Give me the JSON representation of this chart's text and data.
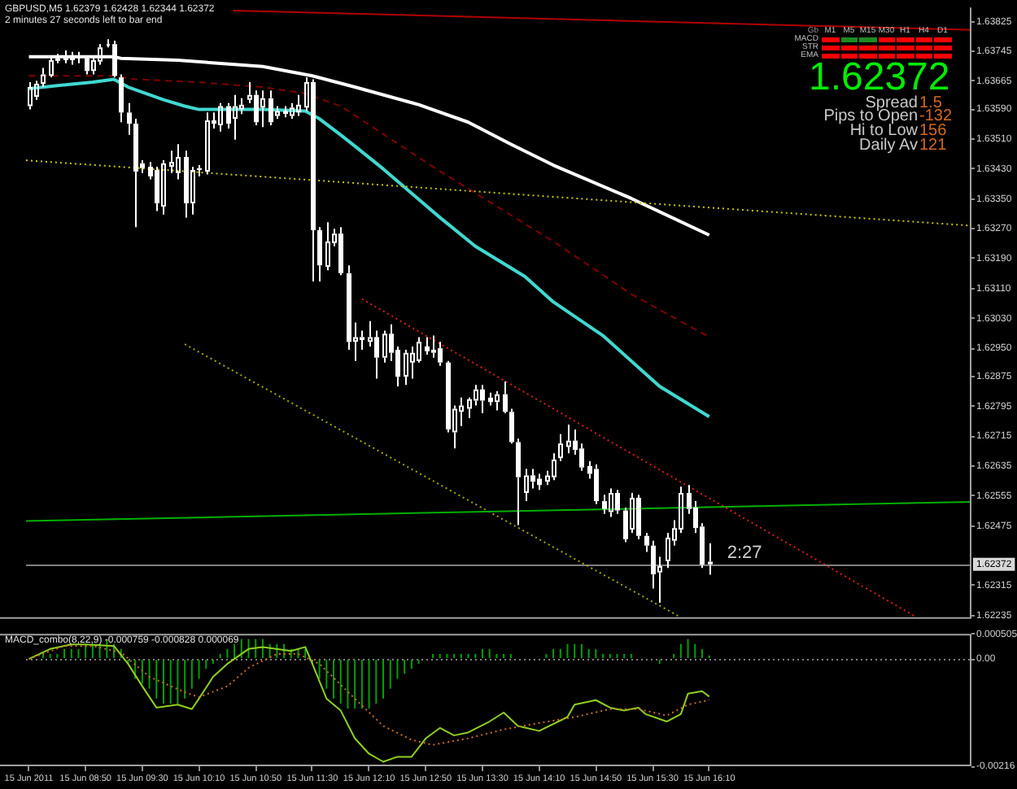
{
  "chart_data": [
    {
      "type": "candlestick",
      "title": "GBPUSD,M5 1.62379 1.62428 1.62344 1.62372",
      "subtitle": "2 minutes 27 seconds left to bar end",
      "x": [
        "2011-06-15T08:10",
        "2011-06-15T08:15",
        "2011-06-15T08:20",
        "2011-06-15T08:25",
        "2011-06-15T08:30",
        "2011-06-15T08:35",
        "2011-06-15T08:40",
        "2011-06-15T08:45",
        "2011-06-15T08:50",
        "2011-06-15T08:55",
        "2011-06-15T09:00",
        "2011-06-15T09:05",
        "2011-06-15T09:10",
        "2011-06-15T09:15",
        "2011-06-15T09:20",
        "2011-06-15T09:25",
        "2011-06-15T09:30",
        "2011-06-15T09:35",
        "2011-06-15T09:40",
        "2011-06-15T09:45",
        "2011-06-15T09:50",
        "2011-06-15T09:55",
        "2011-06-15T10:00",
        "2011-06-15T10:05",
        "2011-06-15T10:10",
        "2011-06-15T10:15",
        "2011-06-15T10:20",
        "2011-06-15T10:25",
        "2011-06-15T10:30",
        "2011-06-15T10:35",
        "2011-06-15T10:40",
        "2011-06-15T10:45",
        "2011-06-15T10:50",
        "2011-06-15T10:55",
        "2011-06-15T11:00",
        "2011-06-15T11:05",
        "2011-06-15T11:10",
        "2011-06-15T11:15",
        "2011-06-15T11:20",
        "2011-06-15T11:25",
        "2011-06-15T11:30",
        "2011-06-15T11:35",
        "2011-06-15T11:40",
        "2011-06-15T11:45",
        "2011-06-15T11:50",
        "2011-06-15T11:55",
        "2011-06-15T12:00",
        "2011-06-15T12:05",
        "2011-06-15T12:10",
        "2011-06-15T12:15",
        "2011-06-15T12:20",
        "2011-06-15T12:25",
        "2011-06-15T12:30",
        "2011-06-15T12:35",
        "2011-06-15T12:40",
        "2011-06-15T12:45",
        "2011-06-15T12:50",
        "2011-06-15T12:55",
        "2011-06-15T13:00",
        "2011-06-15T13:05",
        "2011-06-15T13:10",
        "2011-06-15T13:15",
        "2011-06-15T13:20",
        "2011-06-15T13:25",
        "2011-06-15T13:30",
        "2011-06-15T13:35",
        "2011-06-15T13:40",
        "2011-06-15T13:45",
        "2011-06-15T13:50",
        "2011-06-15T13:55",
        "2011-06-15T14:00",
        "2011-06-15T14:05",
        "2011-06-15T14:10",
        "2011-06-15T14:15",
        "2011-06-15T14:20",
        "2011-06-15T14:25",
        "2011-06-15T14:30",
        "2011-06-15T14:35",
        "2011-06-15T14:40",
        "2011-06-15T14:45",
        "2011-06-15T14:50",
        "2011-06-15T14:55",
        "2011-06-15T15:00",
        "2011-06-15T15:05",
        "2011-06-15T15:10",
        "2011-06-15T15:15",
        "2011-06-15T15:20",
        "2011-06-15T15:25",
        "2011-06-15T15:30",
        "2011-06-15T15:35",
        "2011-06-15T15:40",
        "2011-06-15T15:45",
        "2011-06-15T15:50",
        "2011-06-15T15:55",
        "2011-06-15T16:00",
        "2011-06-15T16:05",
        "2011-06-15T16:10"
      ],
      "ohlc": [
        [
          1.63598,
          1.63662,
          1.63589,
          1.63649
        ],
        [
          1.63623,
          1.63666,
          1.63615,
          1.63658
        ],
        [
          1.63658,
          1.637,
          1.63649,
          1.63683
        ],
        [
          1.63679,
          1.6373,
          1.63675,
          1.63721
        ],
        [
          1.63726,
          1.63738,
          1.63713,
          1.63719
        ],
        [
          1.63734,
          1.63747,
          1.63713,
          1.63721
        ],
        [
          1.63721,
          1.63743,
          1.63709,
          1.6373
        ],
        [
          1.63726,
          1.63743,
          1.63713,
          1.6373
        ],
        [
          1.63726,
          1.63734,
          1.63683,
          1.63692
        ],
        [
          1.63692,
          1.6373,
          1.63683,
          1.63721
        ],
        [
          1.63717,
          1.63764,
          1.63709,
          1.63755
        ],
        [
          1.6376,
          1.63777,
          1.63755,
          1.63764
        ],
        [
          1.63764,
          1.63773,
          1.63675,
          1.63679
        ],
        [
          1.63675,
          1.63683,
          1.63555,
          1.63581
        ],
        [
          1.63581,
          1.63606,
          1.63521,
          1.63551
        ],
        [
          1.63551,
          1.63564,
          1.63274,
          1.63423
        ],
        [
          1.63445,
          1.63453,
          1.63419,
          1.63432
        ],
        [
          1.63436,
          1.63449,
          1.63402,
          1.6341
        ],
        [
          1.63427,
          1.63436,
          1.63317,
          1.63338
        ],
        [
          1.63329,
          1.63453,
          1.63308,
          1.63445
        ],
        [
          1.63436,
          1.63479,
          1.63419,
          1.63449
        ],
        [
          1.63419,
          1.63496,
          1.63402,
          1.63462
        ],
        [
          1.63462,
          1.63479,
          1.633,
          1.63338
        ],
        [
          1.63338,
          1.63436,
          1.63308,
          1.63427
        ],
        [
          1.63427,
          1.6344,
          1.6341,
          1.63432
        ],
        [
          1.63423,
          1.63581,
          1.63415,
          1.6356
        ],
        [
          1.6356,
          1.63581,
          1.63538,
          1.63551
        ],
        [
          1.63547,
          1.63606,
          1.6353,
          1.63598
        ],
        [
          1.63598,
          1.63606,
          1.63538,
          1.63551
        ],
        [
          1.63564,
          1.63628,
          1.63508,
          1.63598
        ],
        [
          1.63589,
          1.63619,
          1.63577,
          1.63602
        ],
        [
          1.63615,
          1.63662,
          1.63606,
          1.63628
        ],
        [
          1.63628,
          1.6364,
          1.63547,
          1.63555
        ],
        [
          1.63594,
          1.6364,
          1.63542,
          1.63619
        ],
        [
          1.63619,
          1.6364,
          1.63547,
          1.63555
        ],
        [
          1.63572,
          1.63598,
          1.63564,
          1.63585
        ],
        [
          1.63585,
          1.63598,
          1.63568,
          1.63577
        ],
        [
          1.63572,
          1.63606,
          1.63564,
          1.63594
        ],
        [
          1.63581,
          1.63628,
          1.63572,
          1.63602
        ],
        [
          1.63594,
          1.63675,
          1.63585,
          1.63662
        ],
        [
          1.63662,
          1.6367,
          1.63129,
          1.63266
        ],
        [
          1.63266,
          1.63274,
          1.63129,
          1.63172
        ],
        [
          1.63168,
          1.63287,
          1.63159,
          1.63236
        ],
        [
          1.63232,
          1.6327,
          1.63223,
          1.63257
        ],
        [
          1.63257,
          1.63274,
          1.63146,
          1.63151
        ],
        [
          1.63151,
          1.63172,
          1.62946,
          1.62967
        ],
        [
          1.62967,
          1.63019,
          1.62916,
          1.6298
        ],
        [
          1.6298,
          1.62997,
          1.62946,
          1.62972
        ],
        [
          1.62967,
          1.63023,
          1.62955,
          1.6298
        ],
        [
          1.6298,
          1.62997,
          1.62869,
          1.62925
        ],
        [
          1.62925,
          1.62997,
          1.62912,
          1.62989
        ],
        [
          1.62989,
          1.63014,
          1.62916,
          1.62938
        ],
        [
          1.62946,
          1.62955,
          1.62848,
          1.62874
        ],
        [
          1.62874,
          1.62946,
          1.62852,
          1.62938
        ],
        [
          1.62912,
          1.62955,
          1.62869,
          1.62938
        ],
        [
          1.62916,
          1.6298,
          1.62912,
          1.62967
        ],
        [
          1.62955,
          1.6298,
          1.62933,
          1.62942
        ],
        [
          1.62938,
          1.62984,
          1.62925,
          1.62946
        ],
        [
          1.6295,
          1.62967,
          1.62903,
          1.62912
        ],
        [
          1.62912,
          1.62916,
          1.62725,
          1.62733
        ],
        [
          1.62725,
          1.62797,
          1.62682,
          1.62788
        ],
        [
          1.6278,
          1.62818,
          1.62742,
          1.62797
        ],
        [
          1.62788,
          1.62818,
          1.62763,
          1.62814
        ],
        [
          1.6281,
          1.62852,
          1.62797,
          1.6284
        ],
        [
          1.6284,
          1.62852,
          1.62776,
          1.6281
        ],
        [
          1.62818,
          1.62831,
          1.62797,
          1.62806
        ],
        [
          1.62806,
          1.62835,
          1.62784,
          1.62827
        ],
        [
          1.62827,
          1.62861,
          1.62776,
          1.6278
        ],
        [
          1.6278,
          1.62788,
          1.62695,
          1.62699
        ],
        [
          1.62699,
          1.62708,
          1.62477,
          1.62605
        ],
        [
          1.62563,
          1.62627,
          1.62541,
          1.6261
        ],
        [
          1.6261,
          1.62627,
          1.62575,
          1.62593
        ],
        [
          1.62601,
          1.62614,
          1.62571,
          1.62584
        ],
        [
          1.62593,
          1.62622,
          1.62584,
          1.6261
        ],
        [
          1.62605,
          1.62669,
          1.62597,
          1.62652
        ],
        [
          1.62656,
          1.6272,
          1.62648,
          1.62695
        ],
        [
          1.62686,
          1.62746,
          1.62669,
          1.62703
        ],
        [
          1.62703,
          1.62733,
          1.62665,
          1.62678
        ],
        [
          1.62682,
          1.62695,
          1.62622,
          1.62631
        ],
        [
          1.62635,
          1.62648,
          1.62601,
          1.62614
        ],
        [
          1.62627,
          1.62639,
          1.62533,
          1.62541
        ],
        [
          1.62541,
          1.62558,
          1.62507,
          1.6252
        ],
        [
          1.62512,
          1.62575,
          1.62499,
          1.62563
        ],
        [
          1.62563,
          1.62571,
          1.62507,
          1.62516
        ],
        [
          1.62516,
          1.62524,
          1.62431,
          1.62439
        ],
        [
          1.62465,
          1.62563,
          1.62456,
          1.6255
        ],
        [
          1.6255,
          1.62558,
          1.62439,
          1.62448
        ],
        [
          1.62448,
          1.62456,
          1.62405,
          1.62422
        ],
        [
          1.62422,
          1.62435,
          1.62307,
          1.62345
        ],
        [
          1.6235,
          1.62392,
          1.62269,
          1.62367
        ],
        [
          1.6238,
          1.62456,
          1.62362,
          1.62443
        ],
        [
          1.62435,
          1.6249,
          1.62422,
          1.62469
        ],
        [
          1.62465,
          1.6258,
          1.62456,
          1.62563
        ],
        [
          1.62563,
          1.62584,
          1.62507,
          1.6252
        ],
        [
          1.62524,
          1.62541,
          1.62456,
          1.62469
        ],
        [
          1.62473,
          1.62482,
          1.62362,
          1.62371
        ],
        [
          1.62379,
          1.62428,
          1.62344,
          1.62372
        ]
      ],
      "color": "#ffffff",
      "series": [
        {
          "type": "line",
          "x": [
            "2011-06-15T08:10",
            "2011-06-15T09:10",
            "2011-06-15T09:15",
            "2011-06-15T09:55",
            "2011-06-15T10:55",
            "2011-06-15T11:30",
            "2011-06-15T12:00",
            "2011-06-15T12:45",
            "2011-06-15T13:20",
            "2011-06-15T13:50",
            "2011-06-15T14:20",
            "2011-06-15T15:15",
            "2011-06-15T16:10"
          ],
          "values": [
            1.6373,
            1.6373,
            1.63726,
            1.63721,
            1.63704,
            1.63679,
            1.63649,
            1.63602,
            1.63555,
            1.63496,
            1.6344,
            1.63351,
            1.63253
          ],
          "color": "#ffffff"
        },
        {
          "type": "line",
          "x": [
            "2011-06-15T08:10",
            "2011-06-15T08:30",
            "2011-06-15T08:55",
            "2011-06-15T09:10",
            "2011-06-15T09:20",
            "2011-06-15T09:45",
            "2011-06-15T10:00",
            "2011-06-15T10:10",
            "2011-06-15T10:55",
            "2011-06-15T11:25",
            "2011-06-15T11:35",
            "2011-06-15T11:50",
            "2011-06-15T12:00",
            "2011-06-15T12:20",
            "2011-06-15T13:00",
            "2011-06-15T13:25",
            "2011-06-15T14:00",
            "2011-06-15T14:20",
            "2011-06-15T14:55",
            "2011-06-15T15:35",
            "2011-06-15T16:10"
          ],
          "values": [
            1.63645,
            1.63653,
            1.63662,
            1.6367,
            1.63649,
            1.63615,
            1.63598,
            1.63589,
            1.63589,
            1.63585,
            1.63564,
            1.63521,
            1.63491,
            1.6343,
            1.633,
            1.63223,
            1.63142,
            1.63074,
            1.62984,
            1.62848,
            1.62767
          ],
          "color": "#40d8d0"
        },
        {
          "type": "line",
          "x": [
            "2011-06-15T08:10",
            "2011-06-15T09:10",
            "2011-06-15T09:25",
            "2011-06-15T10:10",
            "2011-06-15T10:55",
            "2011-06-15T11:25",
            "2011-06-15T11:50",
            "2011-06-15T12:55",
            "2011-06-15T14:20",
            "2011-06-15T15:15",
            "2011-06-15T16:10"
          ],
          "values": [
            1.63679,
            1.63679,
            1.6367,
            1.63662,
            1.63649,
            1.63632,
            1.63598,
            1.63436,
            1.63236,
            1.63095,
            1.6298
          ],
          "color": "#800000",
          "line_style": "dashed"
        },
        {
          "type": "line",
          "x": [
            "2011-06-15T08:08",
            "2011-06-15T19:15"
          ],
          "values": [
            1.63453,
            1.63278
          ],
          "color": "#c8c800",
          "line_style": "dotted"
        },
        {
          "type": "line",
          "x": [
            "2011-06-15T10:00",
            "2011-06-15T15:50"
          ],
          "values": [
            1.62961,
            1.6223
          ],
          "color": "#a8a800",
          "line_style": "dotted"
        },
        {
          "type": "line",
          "x": [
            "2011-06-15T12:05",
            "2011-06-15T18:35"
          ],
          "values": [
            1.63082,
            1.62233
          ],
          "color": "#e01c1c",
          "line_style": "dotted"
        },
        {
          "type": "line",
          "x": [
            "2011-06-15T08:08",
            "2011-06-15T19:15"
          ],
          "values": [
            1.62488,
            1.62539
          ],
          "color": "#00b000"
        },
        {
          "type": "line",
          "x": [
            "2011-06-15T10:34",
            "2011-06-15T19:15"
          ],
          "values": [
            1.63854,
            1.63802
          ],
          "color": "#b00000"
        }
      ],
      "xlim": [
        "2011-06-15T08:08",
        "2011-06-15T19:15"
      ],
      "ylim": [
        1.62226,
        1.63862
      ],
      "yticks": [
        1.63825,
        1.63745,
        1.63665,
        {
          "value": 1.6359,
          "label": "1.63590"
        },
        {
          "value": 1.6351,
          "label": "1.63510"
        },
        {
          "value": 1.6343,
          "label": "1.63430"
        },
        {
          "value": 1.6335,
          "label": "1.63350"
        },
        {
          "value": 1.6327,
          "label": "1.63270"
        },
        {
          "value": 1.6319,
          "label": "1.63190"
        },
        {
          "value": 1.6311,
          "label": "1.63110"
        },
        {
          "value": 1.6303,
          "label": "1.63030"
        },
        {
          "value": 1.6295,
          "label": "1.62950"
        },
        1.62875,
        1.62795,
        1.62715,
        1.62635,
        1.62555,
        1.62475,
        1.62315,
        1.62235
      ],
      "tick_labels": "y",
      "ref_lines": [
        {
          "axis": "y",
          "value": 1.62372,
          "label": "1.62372",
          "color": "#808080"
        }
      ],
      "annotations": [
        {
          "text": "2:27",
          "x": "2011-06-15T16:10",
          "y": 1.62372
        }
      ]
    },
    {
      "type": "other",
      "title": "1.62372",
      "subtitle": "Gb",
      "categories": [
        "M1",
        "M5",
        "M15",
        "M30",
        "H1",
        "H4",
        "D1"
      ],
      "y_categories": [
        "MACD",
        "STR",
        "EMA"
      ],
      "colors": [
        "#ff0000",
        "#1e8c1e",
        "#1e8c1e",
        "#ff0000",
        "#ff0000",
        "#ff0000",
        "#ff0000",
        "#ff0000",
        "#ff0000",
        "#ff0000",
        "#ff0000",
        "#ff0000",
        "#ff0000",
        "#ff0000",
        "#ff0000",
        "#ff0000",
        "#ff0000",
        "#ff0000",
        "#ff0000",
        "#ff0000",
        "#ff0000"
      ],
      "annotations": [
        "Spread",
        "1.5",
        "Pips to Open",
        "-132",
        "Hi to Low",
        "156",
        "Daily Av",
        "121"
      ]
    },
    {
      "type": "bar",
      "title": "MACD_combo(8,22,9) -0.000759 -0.000828 0.000069",
      "x": [
        "2011-06-15T08:10",
        "2011-06-15T08:15",
        "2011-06-15T08:20",
        "2011-06-15T08:25",
        "2011-06-15T08:30",
        "2011-06-15T08:35",
        "2011-06-15T08:40",
        "2011-06-15T08:45",
        "2011-06-15T08:50",
        "2011-06-15T08:55",
        "2011-06-15T09:00",
        "2011-06-15T09:05",
        "2011-06-15T09:10",
        "2011-06-15T09:15",
        "2011-06-15T09:20",
        "2011-06-15T09:25",
        "2011-06-15T09:30",
        "2011-06-15T09:35",
        "2011-06-15T09:40",
        "2011-06-15T09:45",
        "2011-06-15T09:50",
        "2011-06-15T09:55",
        "2011-06-15T10:00",
        "2011-06-15T10:05",
        "2011-06-15T10:10",
        "2011-06-15T10:15",
        "2011-06-15T10:20",
        "2011-06-15T10:25",
        "2011-06-15T10:30",
        "2011-06-15T10:35",
        "2011-06-15T10:40",
        "2011-06-15T10:45",
        "2011-06-15T10:50",
        "2011-06-15T10:55",
        "2011-06-15T11:00",
        "2011-06-15T11:05",
        "2011-06-15T11:10",
        "2011-06-15T11:15",
        "2011-06-15T11:20",
        "2011-06-15T11:25",
        "2011-06-15T11:30",
        "2011-06-15T11:35",
        "2011-06-15T11:40",
        "2011-06-15T11:45",
        "2011-06-15T11:50",
        "2011-06-15T11:55",
        "2011-06-15T12:00",
        "2011-06-15T12:05",
        "2011-06-15T12:10",
        "2011-06-15T12:15",
        "2011-06-15T12:20",
        "2011-06-15T12:25",
        "2011-06-15T12:30",
        "2011-06-15T12:35",
        "2011-06-15T12:40",
        "2011-06-15T12:45",
        "2011-06-15T12:50",
        "2011-06-15T12:55",
        "2011-06-15T13:00",
        "2011-06-15T13:05",
        "2011-06-15T13:10",
        "2011-06-15T13:15",
        "2011-06-15T13:20",
        "2011-06-15T13:25",
        "2011-06-15T13:30",
        "2011-06-15T13:35",
        "2011-06-15T13:40",
        "2011-06-15T13:45",
        "2011-06-15T13:50",
        "2011-06-15T13:55",
        "2011-06-15T14:00",
        "2011-06-15T14:05",
        "2011-06-15T14:10",
        "2011-06-15T14:15",
        "2011-06-15T14:20",
        "2011-06-15T14:25",
        "2011-06-15T14:30",
        "2011-06-15T14:35",
        "2011-06-15T14:40",
        "2011-06-15T14:45",
        "2011-06-15T14:50",
        "2011-06-15T14:55",
        "2011-06-15T15:00",
        "2011-06-15T15:05",
        "2011-06-15T15:10",
        "2011-06-15T15:15",
        "2011-06-15T15:20",
        "2011-06-15T15:25",
        "2011-06-15T15:30",
        "2011-06-15T15:35",
        "2011-06-15T15:40",
        "2011-06-15T15:45",
        "2011-06-15T15:50",
        "2011-06-15T15:55",
        "2011-06-15T16:00",
        "2011-06-15T16:05",
        "2011-06-15T16:10"
      ],
      "series": [
        {
          "values": [
            0,
            0,
            0.0001,
            0.0001,
            0.0001,
            0.0002,
            0.0002,
            0.0002,
            0.0003,
            0.0003,
            0.0003,
            0.0004,
            0.0003,
            0.0002,
            -0.0001,
            -0.0004,
            -0.0005,
            -0.0006,
            -0.0008,
            -0.0009,
            -0.0009,
            -0.0009,
            -0.0008,
            -0.0006,
            -0.0004,
            -0.0002,
            -0.0001,
            0.0001,
            0.0002,
            0.0003,
            0.0004,
            0.0004,
            0.0004,
            0.0004,
            0.0003,
            0.0003,
            0.0003,
            0.0002,
            0.0002,
            0.0002,
            -0.0001,
            -0.0004,
            -0.0006,
            -0.0008,
            -0.0009,
            -0.001,
            -0.001,
            -0.001,
            -0.001,
            -0.0009,
            -0.0008,
            -0.0006,
            -0.0004,
            -0.0003,
            -0.0002,
            -0.0001,
            0,
            0.0001,
            0.0001,
            0.0001,
            0.0001,
            0.0001,
            0.0001,
            0.0001,
            0.0002,
            0.0002,
            0.0001,
            0.0001,
            0.0001,
            0,
            0,
            0,
            0,
            0.0001,
            0.0002,
            0.0002,
            0.0003,
            0.0003,
            0.0003,
            0.0002,
            0.0002,
            0.0001,
            0.0001,
            0.0001,
            0.0001,
            0.0001,
            0,
            0,
            0,
            -0.0001,
            0,
            0.0001,
            0.0003,
            0.0004,
            0.0003,
            0.0002,
            6.9e-05
          ],
          "color": "#00a000"
        },
        {
          "type": "line",
          "x": [
            "2011-06-15T08:10",
            "2011-06-15T08:25",
            "2011-06-15T08:40",
            "2011-06-15T08:50",
            "2011-06-15T09:10",
            "2011-06-15T09:20",
            "2011-06-15T09:30",
            "2011-06-15T09:40",
            "2011-06-15T09:55",
            "2011-06-15T10:05",
            "2011-06-15T10:10",
            "2011-06-15T10:20",
            "2011-06-15T10:30",
            "2011-06-15T10:45",
            "2011-06-15T10:55",
            "2011-06-15T11:15",
            "2011-06-15T11:25",
            "2011-06-15T11:30",
            "2011-06-15T11:40",
            "2011-06-15T11:50",
            "2011-06-15T12:00",
            "2011-06-15T12:10",
            "2011-06-15T12:20",
            "2011-06-15T12:30",
            "2011-06-15T12:40",
            "2011-06-15T12:50",
            "2011-06-15T13:00",
            "2011-06-15T13:10",
            "2011-06-15T13:20",
            "2011-06-15T13:35",
            "2011-06-15T13:45",
            "2011-06-15T13:55",
            "2011-06-15T14:10",
            "2011-06-15T14:30",
            "2011-06-15T14:35",
            "2011-06-15T14:50",
            "2011-06-15T15:00",
            "2011-06-15T15:10",
            "2011-06-15T15:20",
            "2011-06-15T15:25",
            "2011-06-15T15:40",
            "2011-06-15T15:50",
            "2011-06-15T15:55",
            "2011-06-15T16:05",
            "2011-06-15T16:10"
          ],
          "values": [
            0,
            0.0002,
            0.00029,
            0.00029,
            0.00026,
            -0.0001,
            -0.00055,
            -0.00098,
            -0.00092,
            -0.00101,
            -0.0008,
            -0.00036,
            -0.0001,
            0.0002,
            0.00024,
            0.00016,
            0.00024,
            -0.0001,
            -0.0008,
            -0.00104,
            -0.0016,
            -0.00191,
            -0.00207,
            -0.00197,
            -0.00197,
            -0.0016,
            -0.00139,
            -0.00154,
            -0.00148,
            -0.00126,
            -0.00108,
            -0.00135,
            -0.00145,
            -0.00117,
            -0.00092,
            -0.00083,
            -0.00098,
            -0.00104,
            -0.00098,
            -0.00111,
            -0.00126,
            -0.00111,
            -0.0007,
            -0.00065,
            -0.000759
          ],
          "color": "#90d020"
        },
        {
          "type": "line",
          "x": [
            "2011-06-15T08:10",
            "2011-06-15T08:35",
            "2011-06-15T08:55",
            "2011-06-15T09:15",
            "2011-06-15T09:35",
            "2011-06-15T10:00",
            "2011-06-15T10:10",
            "2011-06-15T10:30",
            "2011-06-15T10:45",
            "2011-06-15T11:05",
            "2011-06-15T11:20",
            "2011-06-15T11:35",
            "2011-06-15T12:00",
            "2011-06-15T12:20",
            "2011-06-15T12:40",
            "2011-06-15T12:55",
            "2011-06-15T13:20",
            "2011-06-15T13:45",
            "2011-06-15T14:10",
            "2011-06-15T14:35",
            "2011-06-15T15:00",
            "2011-06-15T15:20",
            "2011-06-15T15:40",
            "2011-06-15T15:55",
            "2011-06-15T16:10"
          ],
          "values": [
            0,
            0.00026,
            0.00026,
            0.00013,
            -0.00036,
            -0.00067,
            -0.00077,
            -0.00055,
            -0.00018,
            0.0001,
            0.0001,
            -0.0001,
            -0.0008,
            -0.00135,
            -0.00163,
            -0.00173,
            -0.0016,
            -0.00142,
            -0.00129,
            -0.00117,
            -0.00101,
            -0.00101,
            -0.00114,
            -0.00092,
            -0.000828
          ],
          "color": "#c87028",
          "line_style": "dotted"
        }
      ],
      "xlim": [
        "2011-06-15T08:08",
        "2011-06-15T19:15"
      ],
      "xticks": [
        {
          "value": "2011-06-15T08:10",
          "label": "15 Jun 2011"
        },
        {
          "value": "2011-06-15T08:50",
          "label": "15 Jun 08:50"
        },
        {
          "value": "2011-06-15T09:30",
          "label": "15 Jun 09:30"
        },
        {
          "value": "2011-06-15T10:10",
          "label": "15 Jun 10:10"
        },
        {
          "value": "2011-06-15T10:50",
          "label": "15 Jun 10:50"
        },
        {
          "value": "2011-06-15T11:30",
          "label": "15 Jun 11:30"
        },
        {
          "value": "2011-06-15T12:10",
          "label": "15 Jun 12:10"
        },
        {
          "value": "2011-06-15T12:50",
          "label": "15 Jun 12:50"
        },
        {
          "value": "2011-06-15T13:30",
          "label": "15 Jun 13:30"
        },
        {
          "value": "2011-06-15T14:10",
          "label": "15 Jun 14:10"
        },
        {
          "value": "2011-06-15T14:50",
          "label": "15 Jun 14:50"
        },
        {
          "value": "2011-06-15T15:30",
          "label": "15 Jun 15:30"
        },
        {
          "value": "2011-06-15T16:10",
          "label": "15 Jun 16:10"
        }
      ],
      "ylim": [
        -0.00216,
        0.000505
      ],
      "yticks": [
        0.000505,
        {
          "value": 0,
          "label": "0.00"
        },
        -0.00216
      ],
      "ref_lines": [
        {
          "axis": "y",
          "value": 0,
          "color": "#808080",
          "line_style": "dotted"
        }
      ]
    }
  ]
}
